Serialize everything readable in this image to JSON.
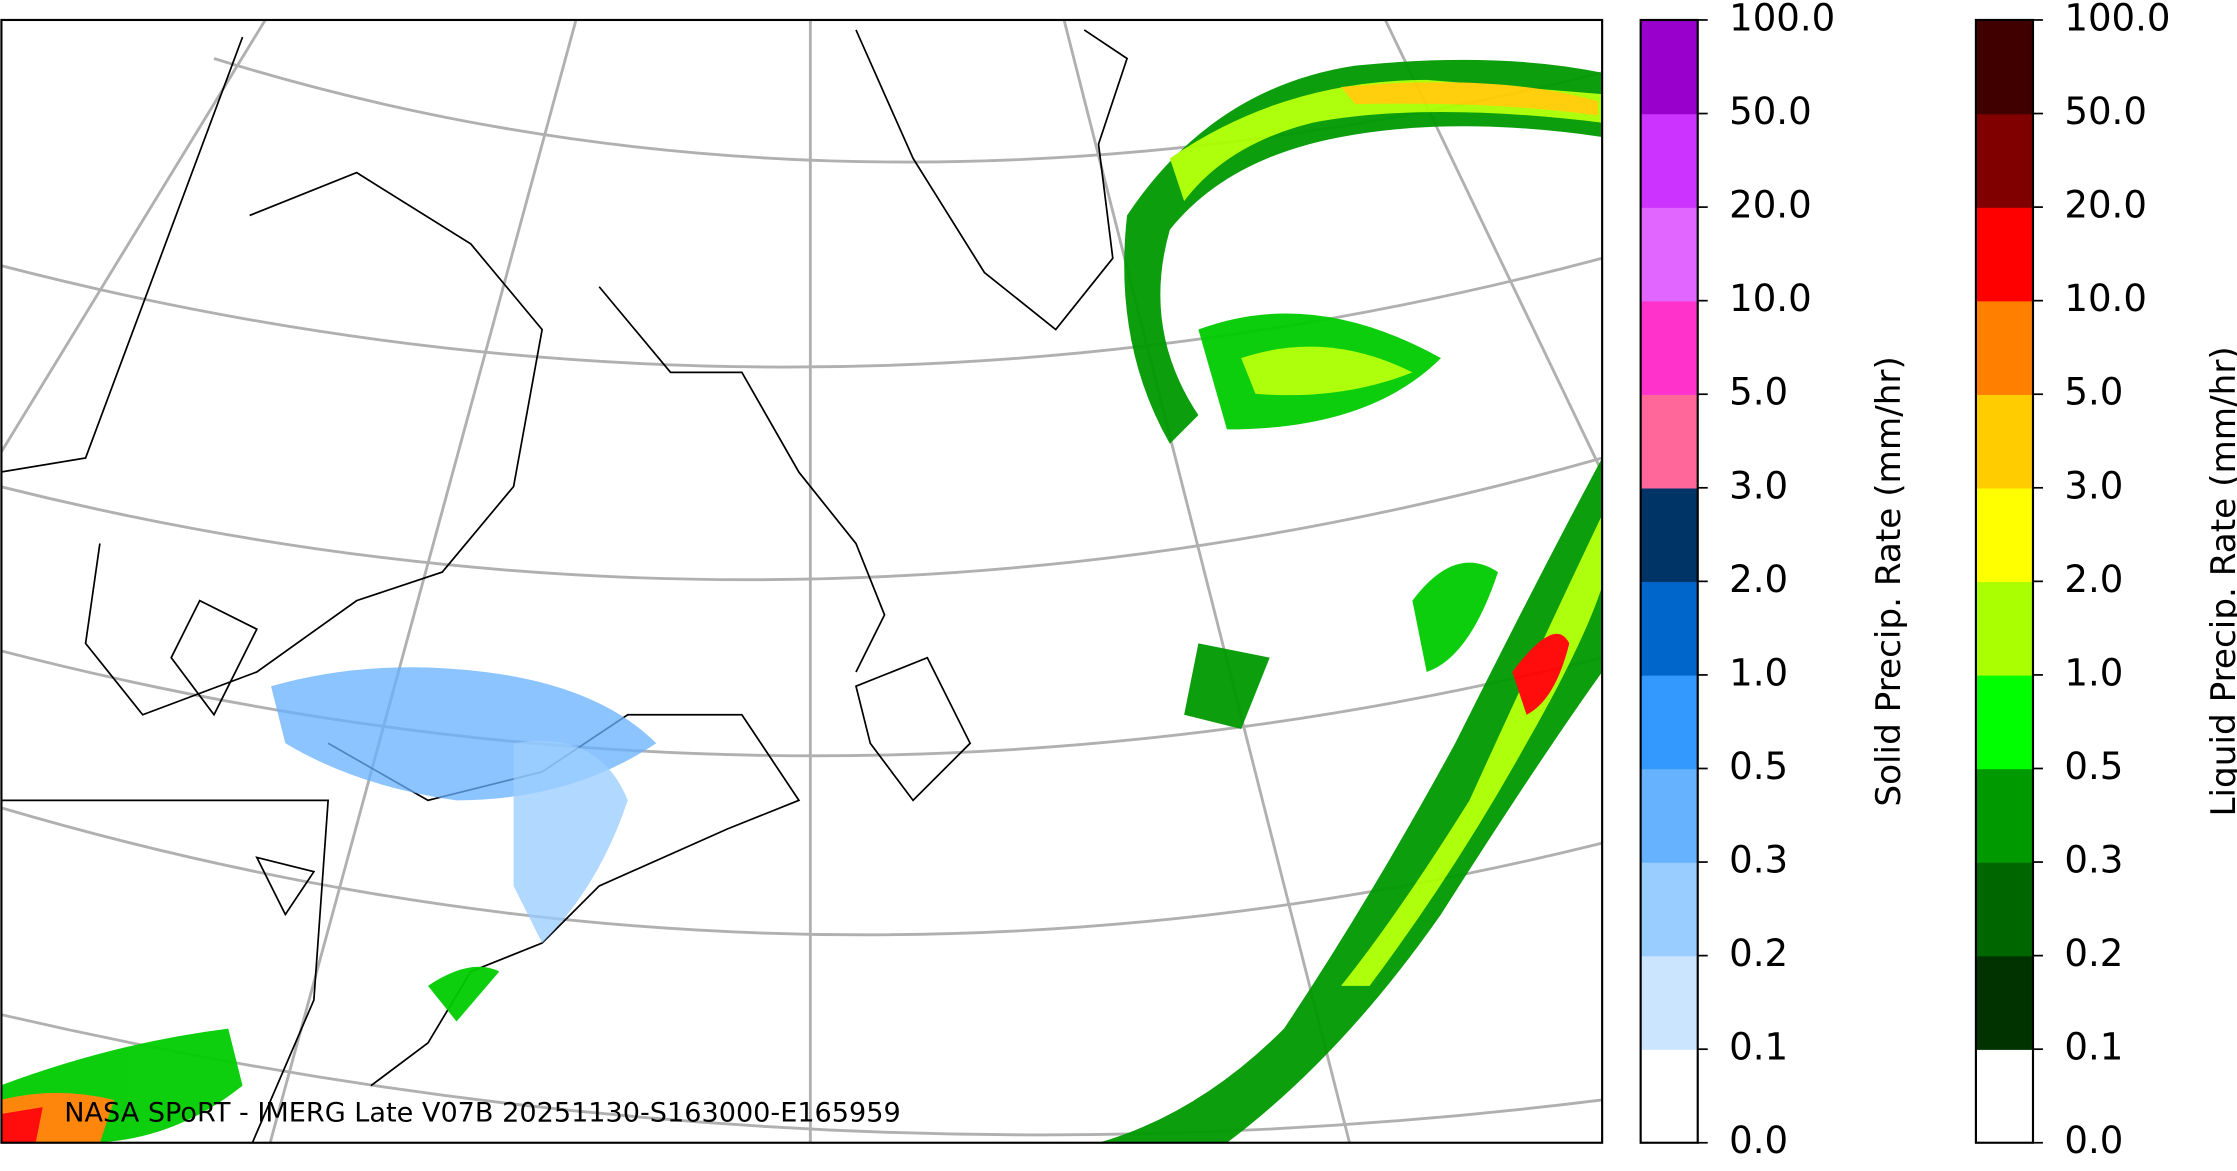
{
  "caption": "NASA SPoRT - IMERG Late V07B 20251130-S163000-E165959",
  "colorbars": [
    {
      "title": "Solid Precip. Rate (mm/hr)",
      "ticks": [
        "0.0",
        "0.1",
        "0.2",
        "0.3",
        "0.5",
        "1.0",
        "2.0",
        "3.0",
        "5.0",
        "10.0",
        "20.0",
        "50.0",
        "100.0"
      ],
      "colors": [
        "#ffffff",
        "#cce5ff",
        "#99ccff",
        "#66b2ff",
        "#3399ff",
        "#0066cc",
        "#003366",
        "#ff6699",
        "#ff33cc",
        "#e066ff",
        "#cc33ff",
        "#9900cc"
      ]
    },
    {
      "title": "Liquid Precip. Rate (mm/hr)",
      "ticks": [
        "0.0",
        "0.1",
        "0.2",
        "0.3",
        "0.5",
        "1.0",
        "2.0",
        "3.0",
        "5.0",
        "10.0",
        "20.0",
        "50.0",
        "100.0"
      ],
      "colors": [
        "#ffffff",
        "#003300",
        "#006600",
        "#009900",
        "#00ff00",
        "#aaff00",
        "#ffff00",
        "#ffcc00",
        "#ff8000",
        "#ff0000",
        "#800000",
        "#400000"
      ]
    }
  ]
}
